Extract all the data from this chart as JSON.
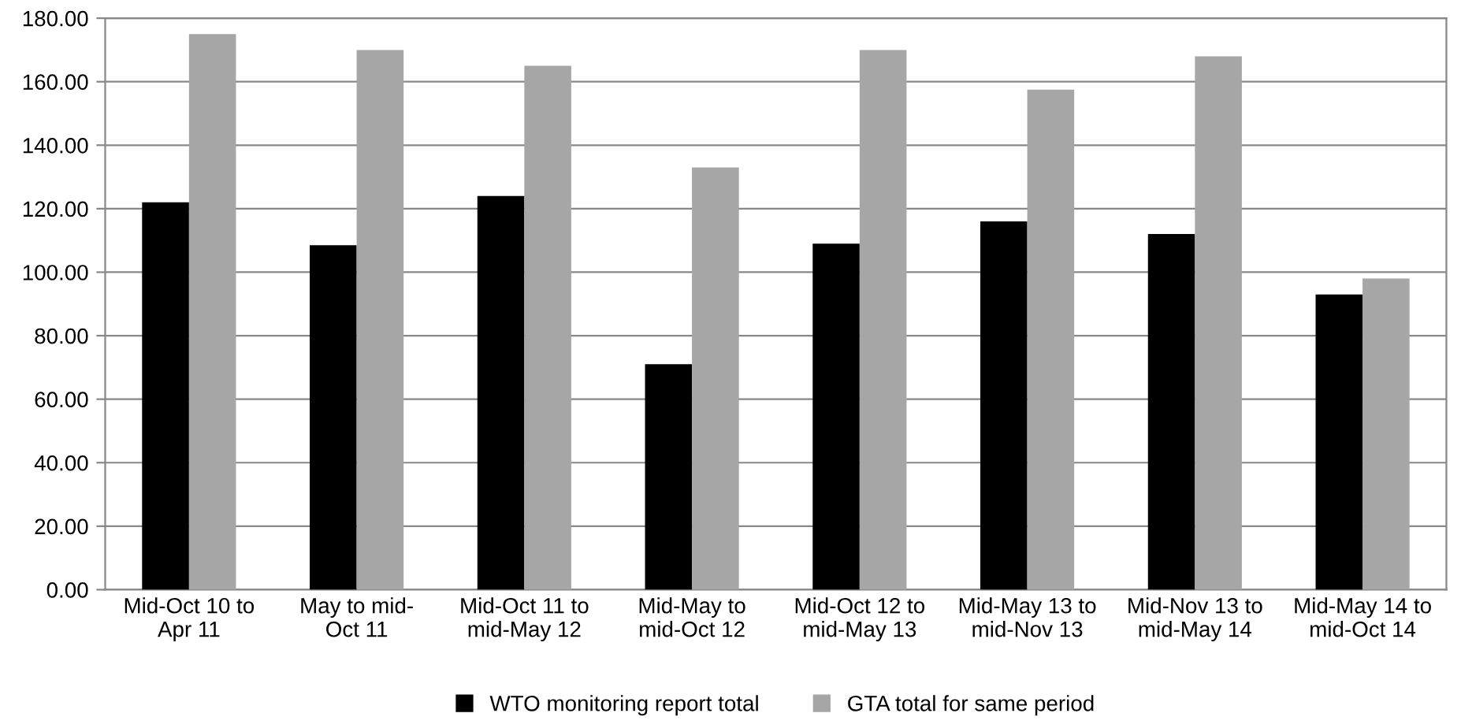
{
  "chart_data": {
    "type": "bar",
    "categories": [
      "Mid-Oct 10 to\nApr 11",
      "May to mid-\nOct 11",
      "Mid-Oct 11 to\nmid-May 12",
      "Mid-May to\nmid-Oct 12",
      "Mid-Oct 12 to\nmid-May 13",
      "Mid-May 13 to\nmid-Nov 13",
      "Mid-Nov 13 to\nmid-May 14",
      "Mid-May 14 to\nmid-Oct 14"
    ],
    "series": [
      {
        "name": "WTO monitoring report total",
        "color": "#000000",
        "values": [
          122,
          108.5,
          124,
          71,
          109,
          116,
          112,
          93
        ]
      },
      {
        "name": "GTA total for same period",
        "color": "#a6a6a6",
        "values": [
          175,
          170,
          165,
          133,
          170,
          157.5,
          168,
          98
        ]
      }
    ],
    "ylim": [
      0,
      180
    ],
    "yticks": [
      {
        "value": 0,
        "label": "0.00"
      },
      {
        "value": 20,
        "label": "20.00"
      },
      {
        "value": 40,
        "label": "40.00"
      },
      {
        "value": 60,
        "label": "60.00"
      },
      {
        "value": 80,
        "label": "80.00"
      },
      {
        "value": 100,
        "label": "100.00"
      },
      {
        "value": 120,
        "label": "120.00"
      },
      {
        "value": 140,
        "label": "140.00"
      },
      {
        "value": 160,
        "label": "160.00"
      },
      {
        "value": 180,
        "label": "180.00"
      }
    ],
    "grid": "y",
    "legend": "bottom"
  }
}
